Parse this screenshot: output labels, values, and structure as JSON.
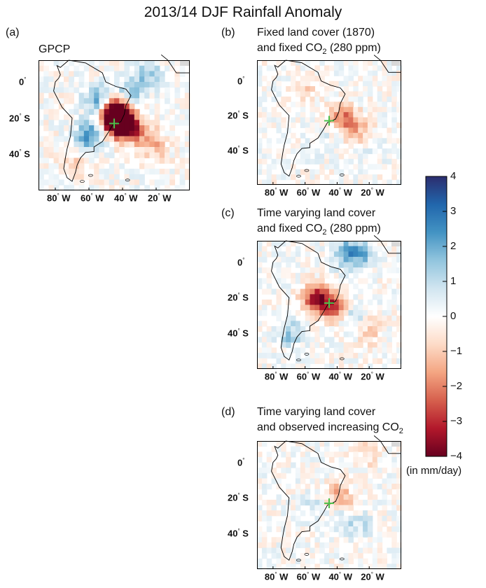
{
  "title": "2013/14 DJF Rainfall Anomaly",
  "chart_data": [
    {
      "type": "heatmap",
      "panel": "(a)",
      "title": "GPCP",
      "subtitle": "",
      "units": "mm/day",
      "x_ticks": [
        "80° W",
        "60° W",
        "40° W",
        "20° W"
      ],
      "y_ticks": [
        "0°",
        "20° S",
        "40° S"
      ],
      "marker": {
        "lon": -45,
        "lat": -23,
        "label": ""
      },
      "anomalies": [
        {
          "lon": -43,
          "lat": -20,
          "value": -4
        },
        {
          "lon": -45,
          "lat": -18,
          "value": -3.5
        },
        {
          "lon": -41,
          "lat": -22,
          "value": -3
        },
        {
          "lon": -38,
          "lat": -25,
          "value": -2
        },
        {
          "lon": -30,
          "lat": -28,
          "value": -1.5
        },
        {
          "lon": -20,
          "lat": -35,
          "value": -1.2
        },
        {
          "lon": -60,
          "lat": -30,
          "value": 2.5
        },
        {
          "lon": -55,
          "lat": -10,
          "value": 2
        },
        {
          "lon": -35,
          "lat": -5,
          "value": 1.5
        },
        {
          "lon": -25,
          "lat": 5,
          "value": 1.5
        },
        {
          "lon": -70,
          "lat": -45,
          "value": -0.8
        }
      ]
    },
    {
      "type": "heatmap",
      "panel": "(b)",
      "title": "Fixed land cover (1870)",
      "subtitle": "and fixed CO",
      "subtitle_sub": "2",
      "subtitle_end": " (280 ppm)",
      "units": "mm/day",
      "x_ticks": [
        "80° W",
        "60° W",
        "40° W",
        "20° W"
      ],
      "y_ticks": [
        "0°",
        "20° S",
        "40° S"
      ],
      "marker": {
        "lon": -45,
        "lat": -23,
        "label": ""
      },
      "anomalies": [
        {
          "lon": -38,
          "lat": -20,
          "value": -1.5
        },
        {
          "lon": -32,
          "lat": -24,
          "value": -1.2
        },
        {
          "lon": -25,
          "lat": -30,
          "value": -1
        },
        {
          "lon": -60,
          "lat": -5,
          "value": -0.8
        },
        {
          "lon": -20,
          "lat": -40,
          "value": 0.6
        },
        {
          "lon": -50,
          "lat": -35,
          "value": 0.5
        }
      ]
    },
    {
      "type": "heatmap",
      "panel": "(c)",
      "title": "Time varying land cover",
      "subtitle": "and fixed CO",
      "subtitle_sub": "2",
      "subtitle_end": " (280 ppm)",
      "units": "mm/day",
      "x_ticks": [
        "80° W",
        "60° W",
        "40° W",
        "20° W"
      ],
      "y_ticks": [
        "0°",
        "20° S",
        "40° S"
      ],
      "marker": {
        "lon": -45,
        "lat": -23,
        "label": ""
      },
      "anomalies": [
        {
          "lon": -55,
          "lat": -20,
          "value": -2.5
        },
        {
          "lon": -48,
          "lat": -22,
          "value": -2.2
        },
        {
          "lon": -40,
          "lat": -25,
          "value": -2
        },
        {
          "lon": -35,
          "lat": 5,
          "value": 2
        },
        {
          "lon": -25,
          "lat": 5,
          "value": 1.8
        },
        {
          "lon": -70,
          "lat": -40,
          "value": 1.5
        },
        {
          "lon": -30,
          "lat": -30,
          "value": 1.2
        },
        {
          "lon": -20,
          "lat": -38,
          "value": -1
        }
      ]
    },
    {
      "type": "heatmap",
      "panel": "(d)",
      "title": "Time varying land cover",
      "subtitle": "and observed increasing CO",
      "subtitle_sub": "2",
      "subtitle_end": "",
      "units": "mm/day",
      "x_ticks": [
        "80° W",
        "60° W",
        "40° W",
        "20° W"
      ],
      "y_ticks": [
        "0°",
        "20° S",
        "40° S"
      ],
      "marker": {
        "lon": -45,
        "lat": -23,
        "label": ""
      },
      "anomalies": [
        {
          "lon": -40,
          "lat": -18,
          "value": -1.2
        },
        {
          "lon": -32,
          "lat": -24,
          "value": -1
        },
        {
          "lon": -35,
          "lat": -30,
          "value": 1
        },
        {
          "lon": -25,
          "lat": -35,
          "value": 0.8
        },
        {
          "lon": -55,
          "lat": -25,
          "value": 0.6
        },
        {
          "lon": -20,
          "lat": 5,
          "value": -0.8
        }
      ]
    }
  ],
  "colorbar": {
    "ticks": [
      "4",
      "3",
      "2",
      "1",
      "0",
      "−1",
      "−2",
      "−3",
      "−4"
    ],
    "range": [
      -4,
      4
    ],
    "units_label": "(in mm/day)",
    "colors": [
      "#67001f",
      "#b2182b",
      "#d6604d",
      "#f4a582",
      "#fddbc7",
      "#ffffff",
      "#d1e5f0",
      "#92c5de",
      "#4393c3",
      "#2166ac",
      "#2c2d6e"
    ]
  },
  "marker_color": "#4cc04a"
}
